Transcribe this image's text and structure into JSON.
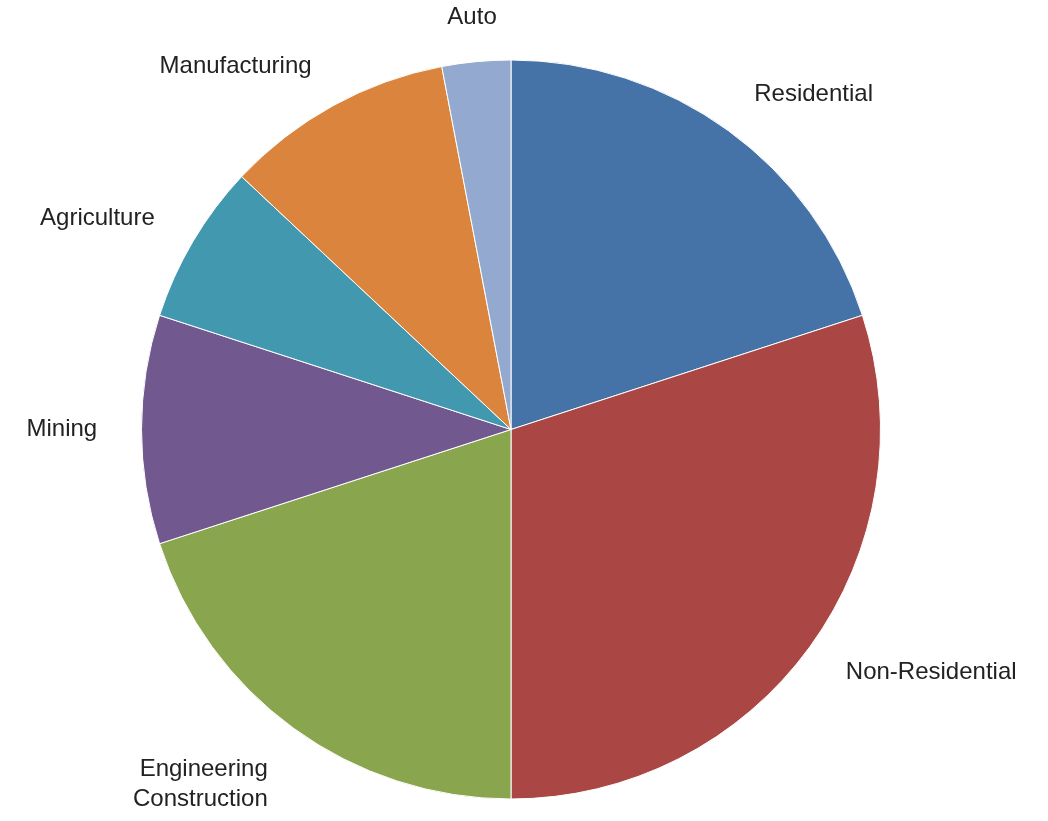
{
  "chart_data": {
    "type": "pie",
    "categories": [
      "Residential",
      "Non-Residential",
      "Engineering Construction",
      "Mining",
      "Agriculture",
      "Manufacturing",
      "Auto"
    ],
    "values": [
      20,
      30,
      20,
      10,
      7,
      10,
      3
    ],
    "colors": [
      "#4572a7",
      "#aa4643",
      "#89a54e",
      "#71588f",
      "#4198af",
      "#db843d",
      "#93a9cf"
    ],
    "legend": false
  }
}
